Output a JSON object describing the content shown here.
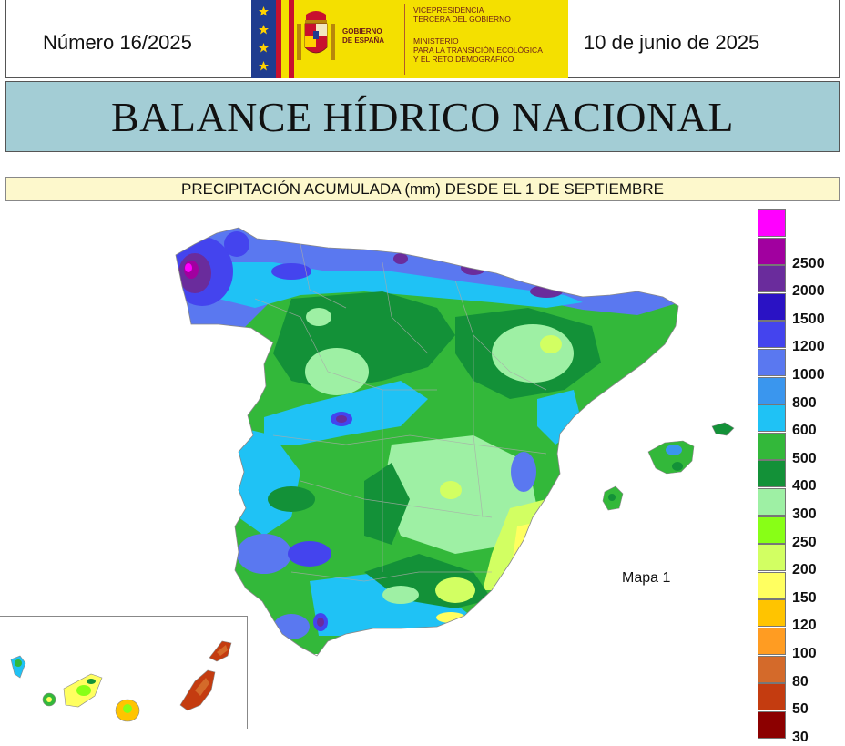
{
  "header": {
    "issue": "Número 16/2025",
    "date": "10 de junio de 2025",
    "gov_logo": {
      "gobierno": [
        "GOBIERNO",
        "DE ESPAÑA"
      ],
      "ministry_lines_top": [
        "VICEPRESIDENCIA",
        "TERCERA DEL GOBIERNO"
      ],
      "ministry_lines_bottom": [
        "MINISTERIO",
        "PARA LA TRANSICIÓN ECOLÓGICA",
        "Y EL RETO DEMOGRÁFICO"
      ]
    }
  },
  "title": "BALANCE HÍDRICO NACIONAL",
  "subtitle": "PRECIPITACIÓN ACUMULADA (mm) DESDE EL 1 DE SEPTIEMBRE",
  "map": {
    "label": "Mapa 1"
  },
  "legend": {
    "items": [
      {
        "label": "",
        "color": "#ff00ff"
      },
      {
        "label": "2500",
        "color": "#a1009f"
      },
      {
        "label": "2000",
        "color": "#6a2c9c"
      },
      {
        "label": "1500",
        "color": "#2a12c4"
      },
      {
        "label": "1200",
        "color": "#4444ee"
      },
      {
        "label": "1000",
        "color": "#5a78f0"
      },
      {
        "label": "800",
        "color": "#3a96ee"
      },
      {
        "label": "600",
        "color": "#1fc2f5"
      },
      {
        "label": "500",
        "color": "#33b83a"
      },
      {
        "label": "400",
        "color": "#139138"
      },
      {
        "label": "300",
        "color": "#9ef0a4"
      },
      {
        "label": "250",
        "color": "#88ff16"
      },
      {
        "label": "200",
        "color": "#d2ff62"
      },
      {
        "label": "150",
        "color": "#ffff60"
      },
      {
        "label": "120",
        "color": "#ffc400"
      },
      {
        "label": "100",
        "color": "#ff9c22"
      },
      {
        "label": "80",
        "color": "#d46a2a"
      },
      {
        "label": "50",
        "color": "#c43c10"
      },
      {
        "label": "30",
        "color": "#8c0000"
      }
    ]
  }
}
